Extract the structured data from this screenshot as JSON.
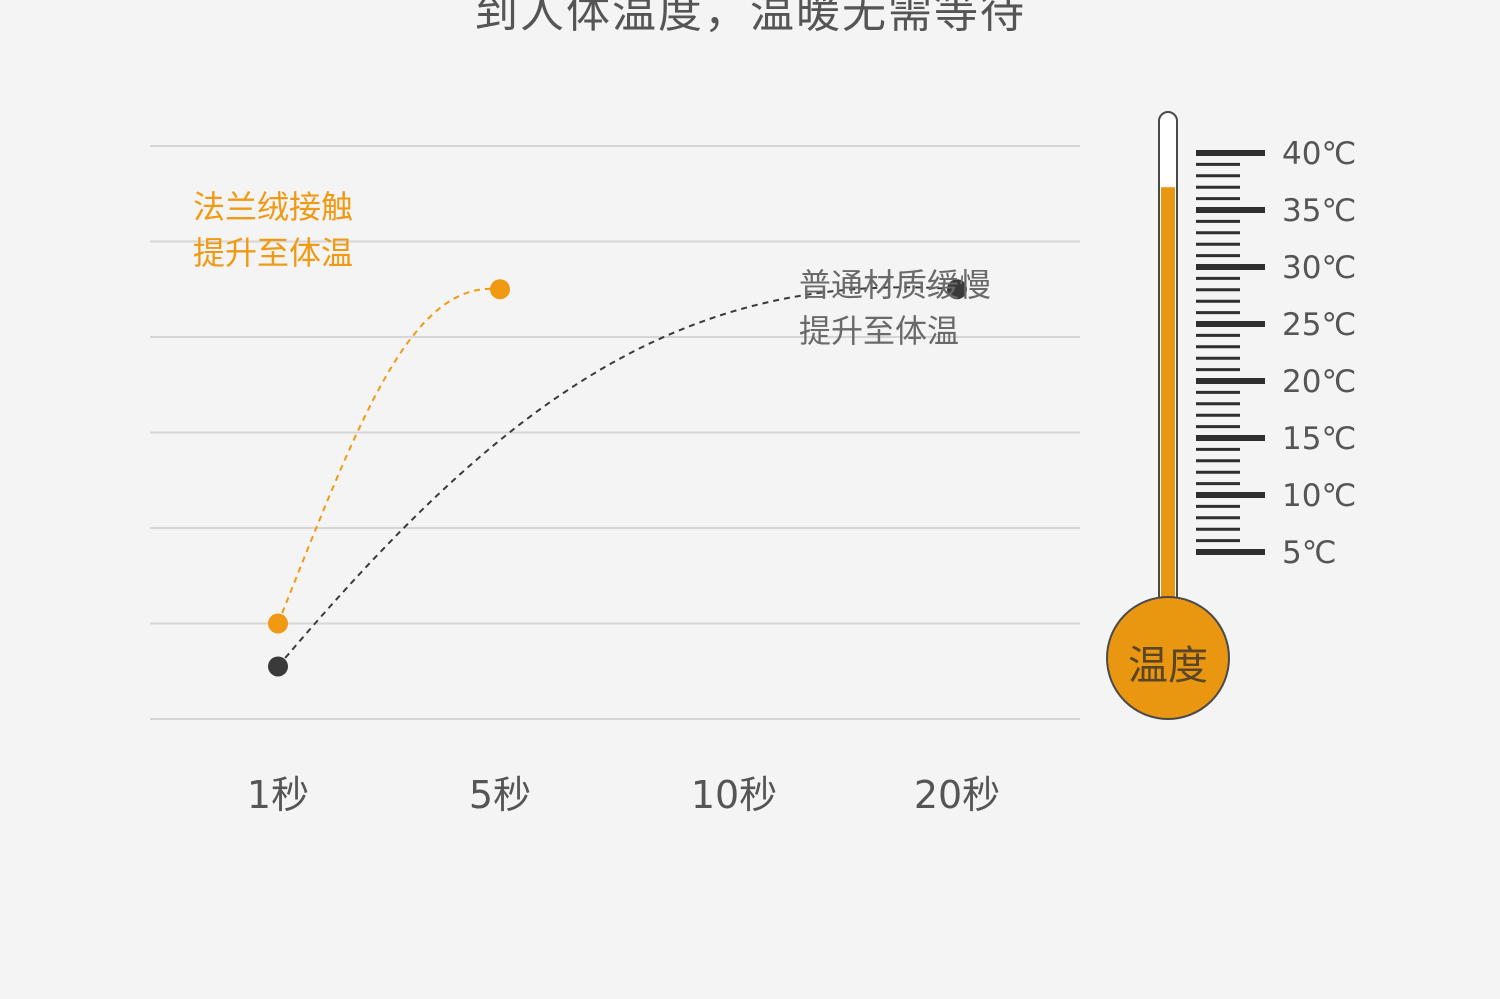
{
  "headline": "到人体温度，温暖无需等待",
  "annotation_flannel": {
    "line1": "法兰绒接触",
    "line2": "提升至体温"
  },
  "annotation_normal": {
    "line1": "普通材质缓慢",
    "line2": "提升至体温"
  },
  "colors": {
    "flannel": "#f09a14",
    "normal": "#3a3a3a",
    "grid": "#d6d6d6",
    "thermo_fill": "#e99611",
    "thermo_outline": "#4a4a4a",
    "background": "#f4f4f4"
  },
  "chart_data": {
    "type": "line",
    "categories": [
      "1秒",
      "5秒",
      "10秒",
      "20秒"
    ],
    "series": [
      {
        "name": "法兰绒",
        "points": [
          {
            "x": "1秒",
            "y": 0.2
          },
          {
            "x": "5秒",
            "y": 0.9
          }
        ],
        "style": "dashed"
      },
      {
        "name": "普通材质",
        "points": [
          {
            "x": "1秒",
            "y": 0.11
          },
          {
            "x": "20秒",
            "y": 0.9
          }
        ],
        "style": "dashed"
      }
    ],
    "grid": true,
    "gridlines": 7,
    "ylim": [
      0,
      1.2
    ]
  },
  "thermometer": {
    "label": "温度",
    "ticks": [
      "40℃",
      "35℃",
      "30℃",
      "25℃",
      "20℃",
      "15℃",
      "10℃",
      "5℃"
    ],
    "tick_values": [
      40,
      35,
      30,
      25,
      20,
      15,
      10,
      5
    ],
    "range": [
      5,
      40
    ],
    "level": 37
  }
}
